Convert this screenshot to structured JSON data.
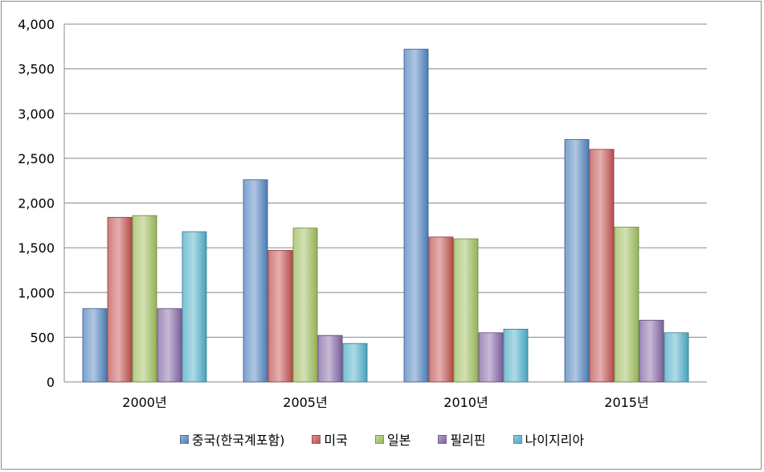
{
  "chart_data": {
    "type": "bar",
    "categories": [
      "2000년",
      "2005년",
      "2010년",
      "2015년"
    ],
    "series": [
      {
        "name": "중국(한국계포함)",
        "values": [
          820,
          2260,
          3720,
          2710
        ],
        "color": "#4f81bd"
      },
      {
        "name": "미국",
        "values": [
          1840,
          1470,
          1620,
          2600
        ],
        "color": "#c0504d"
      },
      {
        "name": "일본",
        "values": [
          1860,
          1720,
          1600,
          1730
        ],
        "color": "#9bbb59"
      },
      {
        "name": "필리핀",
        "values": [
          820,
          520,
          550,
          690
        ],
        "color": "#8064a2"
      },
      {
        "name": "나이지리아",
        "values": [
          1680,
          430,
          590,
          550
        ],
        "color": "#4bacc6"
      }
    ],
    "yticks": [
      "0",
      "500",
      "1,000",
      "1,500",
      "2,000",
      "2,500",
      "3,000",
      "3,500",
      "4,000"
    ],
    "ylim": [
      0,
      4000
    ],
    "grid": true,
    "legend_position": "bottom"
  }
}
